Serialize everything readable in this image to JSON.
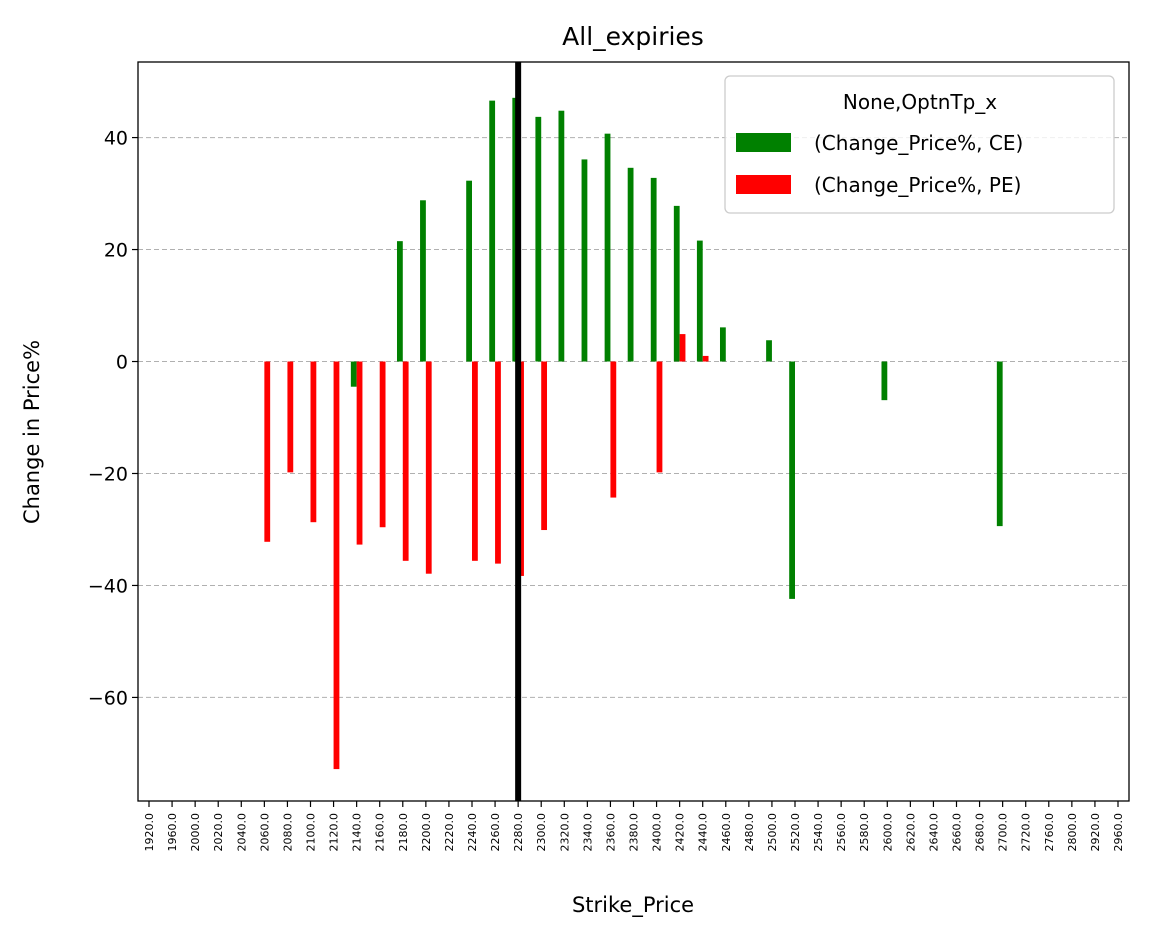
{
  "chart_data": {
    "type": "bar",
    "title": "All_expiries",
    "xlabel": "Strike_Price",
    "ylabel": "Change in Price%",
    "ylim": [
      -78.5,
      53.5
    ],
    "yticks": [
      40,
      20,
      0,
      -20,
      -40,
      -60
    ],
    "ytick_labels": [
      "40",
      "20",
      "0",
      "−20",
      "−40",
      "−60"
    ],
    "grid": "horizontal-dashed",
    "legend_position": "top-right",
    "legend_title": "None,OptnTp_x",
    "reference_line_strike": "2280.0",
    "categories": [
      "1920.0",
      "1960.0",
      "2000.0",
      "2020.0",
      "2040.0",
      "2060.0",
      "2080.0",
      "2100.0",
      "2120.0",
      "2140.0",
      "2160.0",
      "2180.0",
      "2200.0",
      "2220.0",
      "2240.0",
      "2260.0",
      "2280.0",
      "2300.0",
      "2320.0",
      "2340.0",
      "2360.0",
      "2380.0",
      "2400.0",
      "2420.0",
      "2440.0",
      "2460.0",
      "2480.0",
      "2500.0",
      "2520.0",
      "2540.0",
      "2560.0",
      "2580.0",
      "2600.0",
      "2620.0",
      "2640.0",
      "2660.0",
      "2680.0",
      "2700.0",
      "2720.0",
      "2760.0",
      "2800.0",
      "2920.0",
      "2960.0"
    ],
    "series": [
      {
        "name": "(Change_Price%, CE)",
        "color": "#008000",
        "values": [
          null,
          null,
          null,
          null,
          null,
          null,
          null,
          null,
          null,
          -4.5,
          null,
          21.5,
          28.8,
          null,
          32.3,
          46.6,
          47.1,
          43.7,
          44.8,
          36.1,
          40.7,
          34.6,
          32.8,
          27.8,
          21.6,
          6.1,
          null,
          3.8,
          -42.4,
          null,
          null,
          null,
          -6.9,
          null,
          null,
          null,
          null,
          -29.4,
          null,
          null,
          null,
          null,
          null
        ]
      },
      {
        "name": "(Change_Price%, PE)",
        "color": "#ff0000",
        "values": [
          null,
          null,
          null,
          null,
          null,
          -32.2,
          -19.8,
          -28.7,
          -72.8,
          -32.7,
          -29.6,
          -35.6,
          -37.9,
          null,
          -35.6,
          -36.1,
          -38.3,
          -30.1,
          null,
          null,
          -24.3,
          null,
          -19.8,
          4.9,
          1.0,
          null,
          null,
          null,
          null,
          null,
          null,
          null,
          null,
          null,
          null,
          null,
          null,
          null,
          null,
          null,
          null,
          null,
          null
        ]
      }
    ]
  }
}
